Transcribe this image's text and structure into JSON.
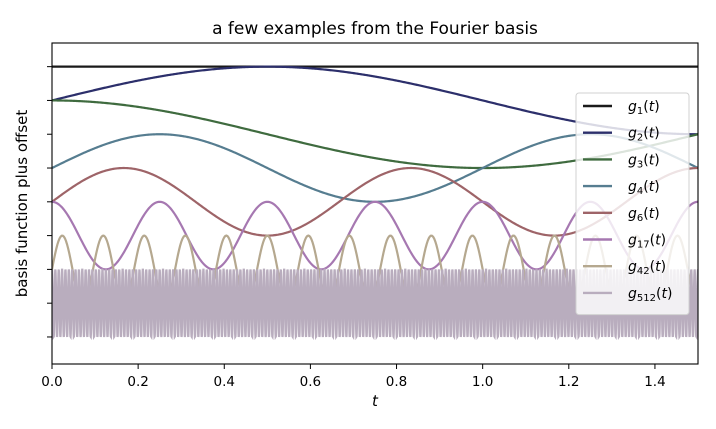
{
  "chart_data": {
    "type": "line",
    "title": "a few examples from the Fourier basis",
    "xlabel": "t",
    "ylabel": "basis function plus offset",
    "xlim": [
      0.0,
      1.5
    ],
    "ylim": [
      -8.8,
      0.7
    ],
    "xticks": [
      "0.0",
      "0.2",
      "0.4",
      "0.6",
      "0.8",
      "1.0",
      "1.2",
      "1.4"
    ],
    "xtick_values": [
      0.0,
      0.2,
      0.4,
      0.6,
      0.8,
      1.0,
      1.2,
      1.4
    ],
    "ytick_values": [
      0,
      -1,
      -2,
      -3,
      -4,
      -5,
      -6,
      -7,
      -8
    ],
    "grid": false,
    "legend_position": "right",
    "series": [
      {
        "name": "g1(t)",
        "sub": "1",
        "color": "#1a1a1a",
        "kind": "const",
        "offset": 0.0,
        "amplitude": 0.0,
        "frequency": 0
      },
      {
        "name": "g2(t)",
        "sub": "2",
        "color": "#2c2f6b",
        "kind": "sin",
        "offset": -1.0,
        "amplitude": 1.0,
        "frequency": 0.5
      },
      {
        "name": "g3(t)",
        "sub": "3",
        "color": "#3f6b3f",
        "kind": "cos",
        "offset": -2.0,
        "amplitude": 1.0,
        "frequency": 0.5
      },
      {
        "name": "g4(t)",
        "sub": "4",
        "color": "#567d90",
        "kind": "sin",
        "offset": -3.0,
        "amplitude": 1.0,
        "frequency": 1
      },
      {
        "name": "g6(t)",
        "sub": "6",
        "color": "#9e6468",
        "kind": "sin",
        "offset": -4.0,
        "amplitude": 1.0,
        "frequency": 1.5
      },
      {
        "name": "g17(t)",
        "sub": "17",
        "color": "#a678b1",
        "kind": "cos",
        "offset": -5.0,
        "amplitude": 1.0,
        "frequency": 4
      },
      {
        "name": "g42(t)",
        "sub": "42",
        "color": "#b5a88f",
        "kind": "sin",
        "offset": -6.0,
        "amplitude": 1.0,
        "frequency": 10.5
      },
      {
        "name": "g512(t)",
        "sub": "512",
        "color": "#b9adbe",
        "kind": "cos",
        "offset": -7.0,
        "amplitude": 1.0,
        "frequency": 128
      }
    ]
  }
}
